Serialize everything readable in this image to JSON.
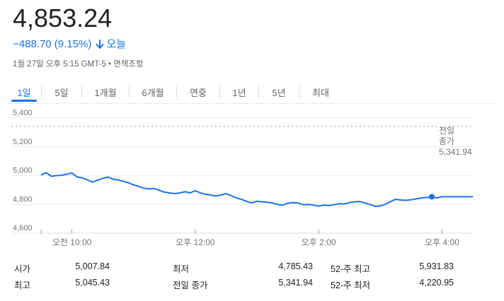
{
  "quote": {
    "price": "4,853.24",
    "change": "−488.70 (9.15%)",
    "change_direction_icon": "arrow-down-icon",
    "period_label": "오늘",
    "timestamp": "1월 27일 오후 5:15 GMT-5",
    "disclaimer_separator": "•",
    "disclaimer": "면책조항",
    "accent_color": "#1a73e8"
  },
  "tabs": [
    {
      "label": "1일",
      "active": true
    },
    {
      "label": "5일",
      "active": false
    },
    {
      "label": "1개월",
      "active": false
    },
    {
      "label": "6개월",
      "active": false
    },
    {
      "label": "연중",
      "active": false
    },
    {
      "label": "1년",
      "active": false
    },
    {
      "label": "5년",
      "active": false
    },
    {
      "label": "최대",
      "active": false
    }
  ],
  "chart_data": {
    "type": "line",
    "ylim": [
      4600,
      5400
    ],
    "yticks": [
      "5,400",
      "5,200",
      "5,000",
      "4,800",
      "4,600"
    ],
    "ytick_values": [
      5400,
      5200,
      5000,
      4800,
      4600
    ],
    "xlim": [
      "09:30",
      "16:30"
    ],
    "xticks": [
      {
        "time": "10:00",
        "label": "오전 10:00"
      },
      {
        "time": "12:00",
        "label": "오후 12:00"
      },
      {
        "time": "14:00",
        "label": "오후 2:00"
      },
      {
        "time": "16:00",
        "label": "오후 4:00"
      }
    ],
    "line_color": "#1a73e8",
    "previous_close": 5341.94,
    "previous_close_label": [
      "전일",
      "종가",
      "5,341.94"
    ],
    "series": [
      {
        "points": [
          [
            "09:30",
            5005
          ],
          [
            "09:35",
            5020
          ],
          [
            "09:40",
            4995
          ],
          [
            "09:45",
            5000
          ],
          [
            "09:50",
            5002
          ],
          [
            "09:55",
            5010
          ],
          [
            "10:00",
            5018
          ],
          [
            "10:05",
            4990
          ],
          [
            "10:10",
            4985
          ],
          [
            "10:15",
            4970
          ],
          [
            "10:20",
            4955
          ],
          [
            "10:25",
            4968
          ],
          [
            "10:30",
            4980
          ],
          [
            "10:35",
            4990
          ],
          [
            "10:40",
            4975
          ],
          [
            "10:45",
            4970
          ],
          [
            "10:50",
            4960
          ],
          [
            "10:55",
            4950
          ],
          [
            "11:00",
            4935
          ],
          [
            "11:05",
            4925
          ],
          [
            "11:10",
            4912
          ],
          [
            "11:15",
            4908
          ],
          [
            "11:20",
            4910
          ],
          [
            "11:25",
            4898
          ],
          [
            "11:30",
            4885
          ],
          [
            "11:35",
            4880
          ],
          [
            "11:40",
            4875
          ],
          [
            "11:45",
            4880
          ],
          [
            "11:50",
            4888
          ],
          [
            "11:55",
            4880
          ],
          [
            "12:00",
            4895
          ],
          [
            "12:05",
            4880
          ],
          [
            "12:10",
            4870
          ],
          [
            "12:15",
            4865
          ],
          [
            "12:20",
            4858
          ],
          [
            "12:25",
            4865
          ],
          [
            "12:30",
            4875
          ],
          [
            "12:35",
            4860
          ],
          [
            "12:40",
            4845
          ],
          [
            "12:45",
            4835
          ],
          [
            "12:50",
            4820
          ],
          [
            "12:55",
            4810
          ],
          [
            "13:00",
            4822
          ],
          [
            "13:05",
            4818
          ],
          [
            "13:10",
            4815
          ],
          [
            "13:15",
            4810
          ],
          [
            "13:20",
            4800
          ],
          [
            "13:25",
            4795
          ],
          [
            "13:30",
            4808
          ],
          [
            "13:35",
            4812
          ],
          [
            "13:40",
            4810
          ],
          [
            "13:45",
            4798
          ],
          [
            "13:50",
            4800
          ],
          [
            "13:55",
            4795
          ],
          [
            "14:00",
            4788
          ],
          [
            "14:05",
            4795
          ],
          [
            "14:10",
            4792
          ],
          [
            "14:15",
            4798
          ],
          [
            "14:20",
            4805
          ],
          [
            "14:25",
            4803
          ],
          [
            "14:30",
            4812
          ],
          [
            "14:35",
            4818
          ],
          [
            "14:40",
            4820
          ],
          [
            "14:45",
            4810
          ],
          [
            "14:50",
            4800
          ],
          [
            "14:55",
            4786
          ],
          [
            "15:00",
            4790
          ],
          [
            "15:05",
            4800
          ],
          [
            "15:10",
            4820
          ],
          [
            "15:15",
            4835
          ],
          [
            "15:20",
            4830
          ],
          [
            "15:25",
            4828
          ],
          [
            "15:30",
            4832
          ],
          [
            "15:35",
            4838
          ],
          [
            "15:40",
            4845
          ],
          [
            "15:45",
            4848
          ],
          [
            "15:50",
            4850
          ],
          [
            "15:55",
            4845
          ],
          [
            "16:00",
            4853.24
          ],
          [
            "16:30",
            4853.24
          ]
        ]
      }
    ]
  },
  "stats": [
    {
      "label": "시가",
      "value": "5,007.84"
    },
    {
      "label": "최고",
      "value": "5,045.43"
    },
    {
      "label": "최저",
      "value": "4,785.43"
    },
    {
      "label": "전일 종가",
      "value": "5,341.94"
    },
    {
      "label": "52-주 최고",
      "value": "5,931.83"
    },
    {
      "label": "52-주 최저",
      "value": "4,220.95"
    }
  ]
}
